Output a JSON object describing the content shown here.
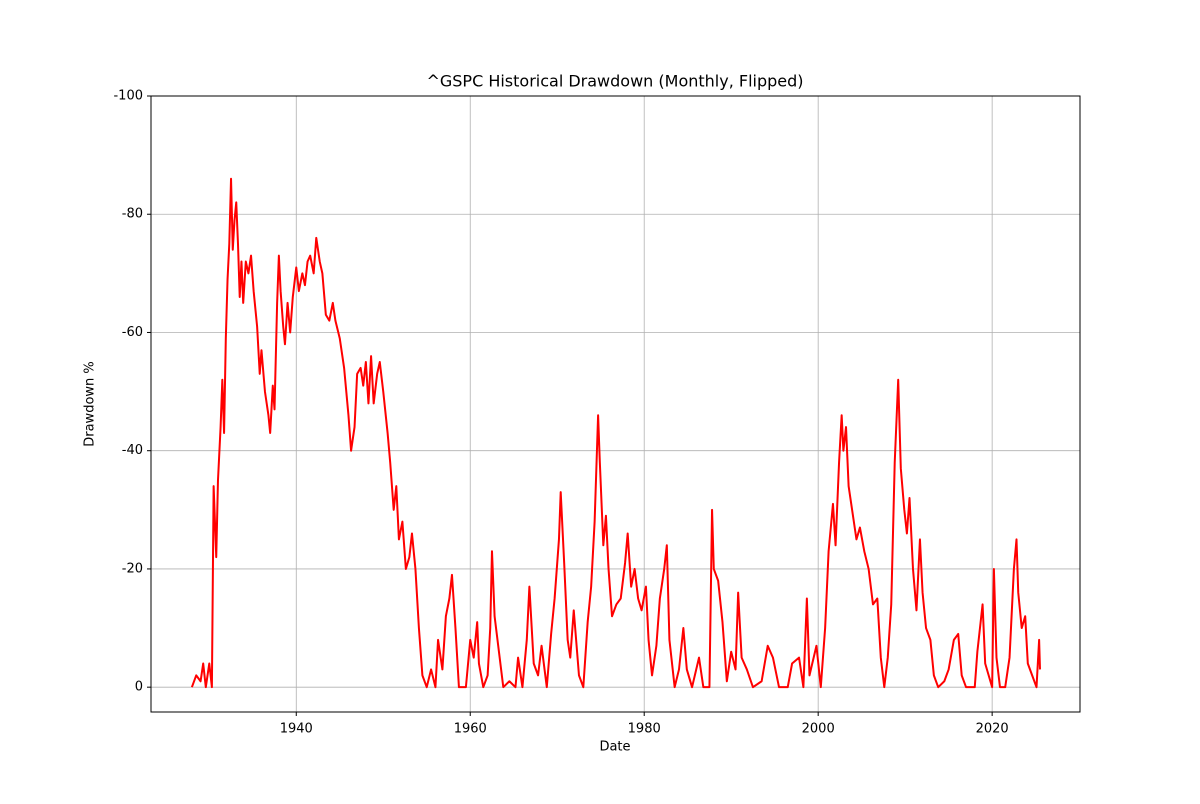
{
  "chart_data": {
    "type": "line",
    "title": "^GSPC Historical Drawdown (Monthly, Flipped)",
    "x_label": "Date",
    "y_label": "Drawdown %",
    "x": [
      1928.0,
      1928.5,
      1929.0,
      1929.3,
      1929.6,
      1930.0,
      1930.3,
      1930.5,
      1930.8,
      1931.0,
      1931.3,
      1931.5,
      1931.7,
      1931.9,
      1932.1,
      1932.3,
      1932.5,
      1932.7,
      1932.9,
      1933.1,
      1933.3,
      1933.5,
      1933.7,
      1933.9,
      1934.2,
      1934.5,
      1934.8,
      1935.1,
      1935.5,
      1935.8,
      1936.0,
      1936.4,
      1936.8,
      1937.0,
      1937.3,
      1937.5,
      1937.8,
      1938.0,
      1938.2,
      1938.5,
      1938.7,
      1939.0,
      1939.3,
      1939.6,
      1940.0,
      1940.3,
      1940.7,
      1941.0,
      1941.3,
      1941.6,
      1942.0,
      1942.3,
      1942.7,
      1943.0,
      1943.4,
      1943.8,
      1944.2,
      1944.5,
      1945.0,
      1945.5,
      1946.0,
      1946.3,
      1946.7,
      1947.0,
      1947.4,
      1947.7,
      1948.0,
      1948.3,
      1948.6,
      1948.9,
      1949.3,
      1949.6,
      1950.0,
      1950.5,
      1950.8,
      1951.2,
      1951.5,
      1951.8,
      1952.2,
      1952.6,
      1953.0,
      1953.3,
      1953.7,
      1954.1,
      1954.5,
      1955.0,
      1955.5,
      1956.0,
      1956.3,
      1956.8,
      1957.2,
      1957.6,
      1957.9,
      1958.3,
      1958.7,
      1959.5,
      1960.0,
      1960.4,
      1960.8,
      1961.0,
      1961.5,
      1962.0,
      1962.3,
      1962.5,
      1962.8,
      1963.3,
      1963.8,
      1964.5,
      1965.2,
      1965.5,
      1966.0,
      1966.5,
      1966.8,
      1967.3,
      1967.8,
      1968.2,
      1968.8,
      1969.3,
      1969.7,
      1970.2,
      1970.4,
      1970.8,
      1971.2,
      1971.5,
      1971.9,
      1972.5,
      1973.0,
      1973.5,
      1973.9,
      1974.3,
      1974.7,
      1974.9,
      1975.3,
      1975.6,
      1975.9,
      1976.3,
      1976.8,
      1977.3,
      1977.8,
      1978.1,
      1978.5,
      1978.9,
      1979.3,
      1979.7,
      1980.2,
      1980.5,
      1980.9,
      1981.4,
      1981.8,
      1982.3,
      1982.6,
      1982.9,
      1983.5,
      1984.0,
      1984.5,
      1984.9,
      1985.5,
      1986.3,
      1986.8,
      1987.5,
      1987.8,
      1988.0,
      1988.5,
      1989.0,
      1989.5,
      1990.0,
      1990.5,
      1990.8,
      1991.2,
      1991.8,
      1992.5,
      1993.5,
      1994.2,
      1994.8,
      1995.5,
      1996.5,
      1997.0,
      1997.8,
      1998.3,
      1998.7,
      1999.0,
      1999.8,
      2000.3,
      2000.8,
      2001.2,
      2001.7,
      2002.0,
      2002.4,
      2002.7,
      2002.9,
      2003.2,
      2003.5,
      2004.0,
      2004.4,
      2004.8,
      2005.3,
      2005.8,
      2006.3,
      2006.8,
      2007.2,
      2007.6,
      2008.0,
      2008.4,
      2008.8,
      2009.2,
      2009.5,
      2009.9,
      2010.2,
      2010.5,
      2010.9,
      2011.3,
      2011.7,
      2012.0,
      2012.4,
      2012.9,
      2013.3,
      2013.8,
      2014.5,
      2015.0,
      2015.6,
      2016.1,
      2016.5,
      2017.0,
      2018.0,
      2018.3,
      2018.9,
      2019.2,
      2019.6,
      2020.0,
      2020.2,
      2020.5,
      2020.9,
      2021.5,
      2022.0,
      2022.5,
      2022.8,
      2023.0,
      2023.4,
      2023.8,
      2024.1,
      2024.6,
      2025.1,
      2025.4,
      2025.5
    ],
    "series": [
      {
        "name": "Drawdown",
        "color": "#ff0000",
        "values": [
          0,
          -2,
          -1,
          -4,
          0,
          -4,
          0,
          -34,
          -22,
          -35,
          -44,
          -52,
          -43,
          -59,
          -69,
          -75,
          -86,
          -74,
          -79,
          -82,
          -75,
          -66,
          -72,
          -65,
          -72,
          -70,
          -73,
          -67,
          -61,
          -53,
          -57,
          -50,
          -46,
          -43,
          -51,
          -47,
          -65,
          -73,
          -67,
          -61,
          -58,
          -65,
          -60,
          -66,
          -71,
          -67,
          -70,
          -68,
          -72,
          -73,
          -70,
          -76,
          -72,
          -70,
          -63,
          -62,
          -65,
          -62,
          -59,
          -54,
          -46,
          -40,
          -44,
          -53,
          -54,
          -51,
          -55,
          -48,
          -56,
          -48,
          -53,
          -55,
          -50,
          -43,
          -38,
          -30,
          -34,
          -25,
          -28,
          -20,
          -22,
          -26,
          -20,
          -10,
          -2,
          0,
          -3,
          0,
          -8,
          -3,
          -12,
          -15,
          -19,
          -10,
          0,
          0,
          -8,
          -5,
          -11,
          -4,
          0,
          -2,
          -10,
          -23,
          -12,
          -6,
          0,
          -1,
          0,
          -5,
          0,
          -8,
          -17,
          -4,
          -2,
          -7,
          0,
          -9,
          -15,
          -25,
          -33,
          -21,
          -8,
          -5,
          -13,
          -2,
          0,
          -11,
          -17,
          -28,
          -46,
          -38,
          -24,
          -29,
          -20,
          -12,
          -14,
          -15,
          -21,
          -26,
          -17,
          -20,
          -15,
          -13,
          -17,
          -8,
          -2,
          -7,
          -15,
          -20,
          -24,
          -8,
          0,
          -3,
          -10,
          -3,
          0,
          -5,
          0,
          0,
          -30,
          -20,
          -18,
          -11,
          -1,
          -6,
          -3,
          -16,
          -5,
          -3,
          0,
          -1,
          -7,
          -5,
          0,
          0,
          -4,
          -5,
          0,
          -15,
          -2,
          -7,
          0,
          -10,
          -23,
          -31,
          -24,
          -38,
          -46,
          -40,
          -44,
          -34,
          -29,
          -25,
          -27,
          -23,
          -20,
          -14,
          -15,
          -5,
          0,
          -5,
          -14,
          -38,
          -52,
          -37,
          -30,
          -26,
          -32,
          -20,
          -13,
          -25,
          -16,
          -10,
          -8,
          -2,
          0,
          -1,
          -3,
          -8,
          -9,
          -2,
          0,
          0,
          -6,
          -14,
          -4,
          -2,
          0,
          -20,
          -5,
          0,
          0,
          -5,
          -20,
          -25,
          -16,
          -10,
          -12,
          -4,
          -2,
          0,
          -8,
          -3
        ]
      }
    ],
    "xlim": [
      1923.3,
      2030.1
    ],
    "xticks": [
      1940,
      1960,
      1980,
      2000,
      2020
    ],
    "ylim": [
      4.2,
      -100
    ],
    "yticks": [
      -100,
      -80,
      -60,
      -40,
      -20,
      0
    ],
    "grid": true
  }
}
